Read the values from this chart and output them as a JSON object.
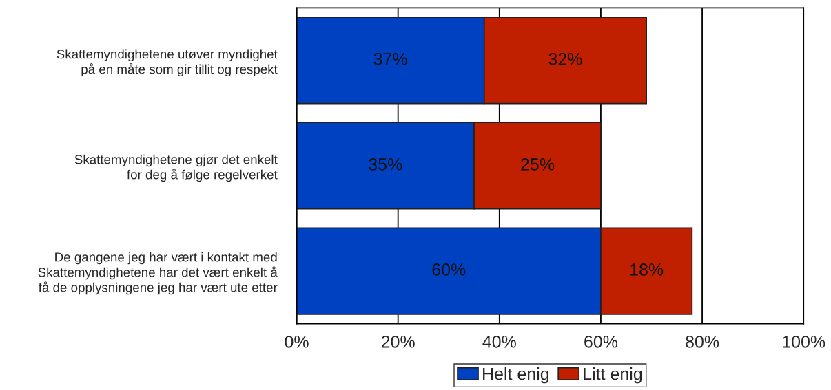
{
  "chart_data": {
    "type": "bar",
    "orientation": "horizontal",
    "stacked": true,
    "categories": [
      "Skattemyndighetene utøver myndighet\npå en måte som gir tillit og respekt",
      "Skattemyndighetene gjør det enkelt\nfor deg å følge regelverket",
      "De gangene jeg har vært i kontakt med\nSkattemyndighetene har det vært enkelt å\nfå de opplysningene jeg har vært ute etter"
    ],
    "series": [
      {
        "name": "Helt enig",
        "color": "#0041c2",
        "values": [
          37,
          35,
          60
        ]
      },
      {
        "name": "Litt enig",
        "color": "#c02000",
        "values": [
          32,
          25,
          18
        ]
      }
    ],
    "value_labels": [
      [
        "37%",
        "35%",
        "60%"
      ],
      [
        "32%",
        "25%",
        "18%"
      ]
    ],
    "xlim": [
      0,
      100
    ],
    "xticks": [
      {
        "value": 0,
        "label": "0%"
      },
      {
        "value": 20,
        "label": "20%"
      },
      {
        "value": 40,
        "label": "40%"
      },
      {
        "value": 60,
        "label": "60%"
      },
      {
        "value": 80,
        "label": "80%"
      },
      {
        "value": 100,
        "label": "100%"
      }
    ],
    "grid": "x",
    "legend": "bottom"
  }
}
